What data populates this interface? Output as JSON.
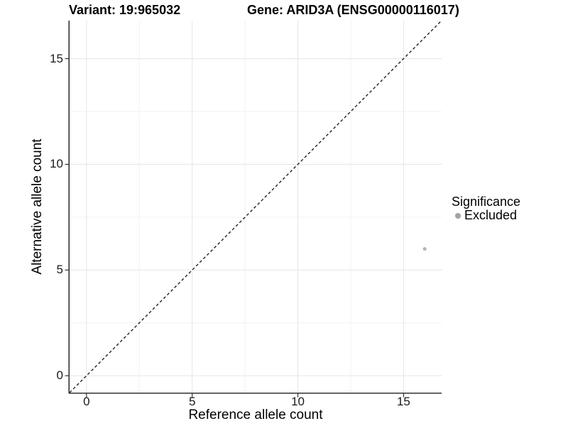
{
  "figure": {
    "title_variant": "Variant: 19:965032",
    "title_gene": "Gene: ARID3A (ENSG00000116017)"
  },
  "chart_data": {
    "type": "scatter",
    "title": "Variant: 19:965032        Gene: ARID3A (ENSG00000116017)",
    "xlabel": "Reference allele count",
    "ylabel": "Alternative allele count",
    "xlim": [
      -0.8,
      16.8
    ],
    "ylim": [
      -0.8,
      16.8
    ],
    "x_ticks": [
      0,
      5,
      10,
      15
    ],
    "y_ticks": [
      0,
      5,
      10,
      15
    ],
    "x_minor_ticks": [
      2.5,
      7.5,
      12.5
    ],
    "y_minor_ticks": [
      2.5,
      7.5,
      12.5
    ],
    "grid": true,
    "legend_position": "right",
    "points": [
      {
        "x": 16,
        "y": 6,
        "series": "Excluded"
      }
    ],
    "reference_line": {
      "slope": 1,
      "intercept": 0,
      "style": "dashed",
      "color": "#111111"
    },
    "legend": {
      "title": "Significance",
      "entries": [
        {
          "label": "Excluded",
          "color": "#a3a3a3"
        }
      ]
    },
    "colors": {
      "point": "#b6b6b6",
      "legend_key": "#a3a3a3",
      "grid_major": "#e7e7e7",
      "grid_minor": "#f2f2f2",
      "axis_line": "#333333",
      "tick_mark": "#333333",
      "background": "#ffffff"
    }
  }
}
